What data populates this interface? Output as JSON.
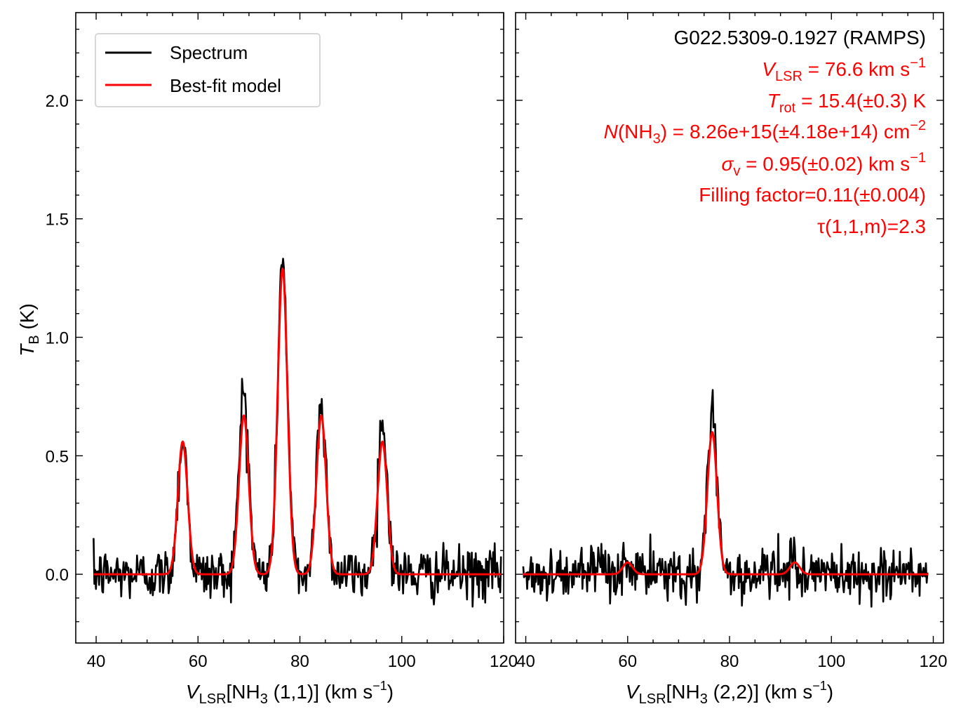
{
  "chart_data": [
    {
      "type": "line",
      "panel": "left",
      "xlabel": "V_LSR[NH3 (1,1)] (km s^-1)",
      "ylabel": "T_B (K)",
      "xlim": [
        36,
        120
      ],
      "ylim": [
        -0.29,
        2.37
      ],
      "xticks": [
        40,
        60,
        80,
        100,
        120
      ],
      "yticks": [
        0.0,
        0.5,
        1.0,
        1.5,
        2.0
      ],
      "legend": {
        "position": "top-left",
        "entries": [
          {
            "label": "Spectrum",
            "color": "#000000"
          },
          {
            "label": "Best-fit model",
            "color": "#ff0000"
          }
        ]
      },
      "x_range": [
        39.5,
        119.5
      ],
      "noise_std_K": 0.055,
      "series": [
        {
          "name": "Spectrum",
          "color": "#000000",
          "components": [
            {
              "center": 57.0,
              "amplitude": 0.57,
              "sigma": 0.95
            },
            {
              "center": 69.0,
              "amplitude": 0.78,
              "sigma": 0.95
            },
            {
              "center": 76.6,
              "amplitude": 1.34,
              "sigma": 0.95
            },
            {
              "center": 84.2,
              "amplitude": 0.73,
              "sigma": 0.95
            },
            {
              "center": 96.2,
              "amplitude": 0.64,
              "sigma": 0.95
            }
          ]
        },
        {
          "name": "Best-fit model",
          "color": "#ff0000",
          "components": [
            {
              "center": 57.0,
              "amplitude": 0.56,
              "sigma": 0.95
            },
            {
              "center": 69.0,
              "amplitude": 0.67,
              "sigma": 0.95
            },
            {
              "center": 76.6,
              "amplitude": 1.29,
              "sigma": 0.95
            },
            {
              "center": 84.2,
              "amplitude": 0.67,
              "sigma": 0.95
            },
            {
              "center": 96.2,
              "amplitude": 0.56,
              "sigma": 0.95
            }
          ]
        }
      ]
    },
    {
      "type": "line",
      "panel": "right",
      "xlabel": "V_LSR[NH3 (2,2)] (km s^-1)",
      "xlim": [
        38,
        122
      ],
      "ylim": [
        -0.29,
        2.37
      ],
      "xticks": [
        40,
        60,
        80,
        100,
        120
      ],
      "x_range": [
        39.5,
        119.0
      ],
      "noise_std_K": 0.055,
      "series": [
        {
          "name": "Spectrum",
          "color": "#000000",
          "components": [
            {
              "center": 60.0,
              "amplitude": 0.05,
              "sigma": 0.95
            },
            {
              "center": 76.6,
              "amplitude": 0.68,
              "sigma": 0.95
            },
            {
              "center": 92.8,
              "amplitude": 0.05,
              "sigma": 0.95
            }
          ]
        },
        {
          "name": "Best-fit model",
          "color": "#ff0000",
          "components": [
            {
              "center": 60.0,
              "amplitude": 0.05,
              "sigma": 0.95
            },
            {
              "center": 76.6,
              "amplitude": 0.6,
              "sigma": 0.95
            },
            {
              "center": 92.8,
              "amplitude": 0.05,
              "sigma": 0.95
            }
          ]
        }
      ]
    }
  ],
  "labels": {
    "ylabel_main": "T",
    "ylabel_sub": "B",
    "ylabel_unit": " (K)",
    "xlabel_left_v": "V",
    "xlabel_left_sub": "LSR",
    "xlabel_left_mid1": "[NH",
    "xlabel_left_sub3": "3",
    "xlabel_left_mid2": " (1,1)] (km s",
    "xlabel_left_sup": "−1",
    "xlabel_left_end": ")",
    "xlabel_right_v": "V",
    "xlabel_right_sub": "LSR",
    "xlabel_right_mid1": "[NH",
    "xlabel_right_sub3": "3",
    "xlabel_right_mid2": " (2,2)] (km s",
    "xlabel_right_sup": "−1",
    "xlabel_right_end": ")"
  },
  "legend": {
    "spectrum_label": "Spectrum",
    "model_label": "Best-fit model"
  },
  "annotations": {
    "source": "G022.5309-0.1927 (RAMPS)",
    "vlsr_sym": "V",
    "vlsr_sub": "LSR",
    "vlsr_val": " = 76.6 km s",
    "vlsr_sup": "−1",
    "trot_sym": "T",
    "trot_sub": "rot",
    "trot_val": " = 15.4(±0.3) K",
    "ncol_sym": "N",
    "ncol_mid": "(NH",
    "ncol_sub": "3",
    "ncol_val": ") = 8.26e+15(±4.18e+14) cm",
    "ncol_sup": "−2",
    "sigma_sym": "σ",
    "sigma_sub": "v",
    "sigma_val": " = 0.95(±0.02) km s",
    "sigma_sup": "−1",
    "filling": "Filling factor=0.11(±0.004)",
    "tau": "τ(1,1,m)=2.3"
  },
  "colors": {
    "spectrum": "#000000",
    "model": "#ff0000",
    "annotation": "#ff0000"
  }
}
